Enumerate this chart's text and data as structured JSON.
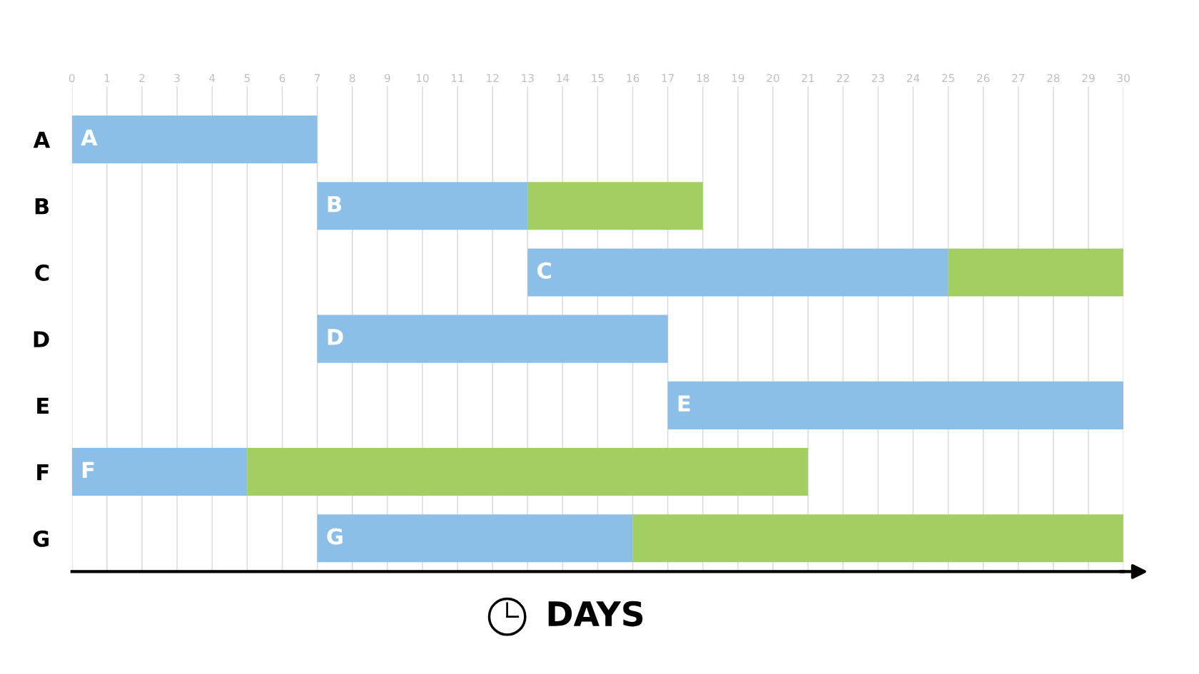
{
  "chart_data": {
    "type": "bar",
    "orientation": "horizontal",
    "categories": [
      "A",
      "B",
      "C",
      "D",
      "E",
      "F",
      "G"
    ],
    "series": [
      {
        "color": "#8bbfe8",
        "base": [
          0,
          7,
          13,
          7,
          17,
          0,
          7
        ],
        "values": [
          7,
          6,
          12,
          10,
          13,
          5,
          9
        ]
      },
      {
        "color": "#a3cf62",
        "base": [
          null,
          13,
          25,
          null,
          null,
          5,
          16
        ],
        "values": [
          null,
          5,
          5,
          null,
          null,
          16,
          14
        ]
      }
    ],
    "annotations": [
      "A",
      "B",
      "C",
      "D",
      "E",
      "F",
      "G"
    ],
    "xlabel": "DAYS",
    "xlim": [
      0,
      30
    ],
    "xticks": [
      0,
      1,
      2,
      3,
      4,
      5,
      6,
      7,
      8,
      9,
      10,
      11,
      12,
      13,
      14,
      15,
      16,
      17,
      18,
      19,
      20,
      21,
      22,
      23,
      24,
      25,
      26,
      27,
      28,
      29,
      30
    ],
    "grid": "x"
  }
}
